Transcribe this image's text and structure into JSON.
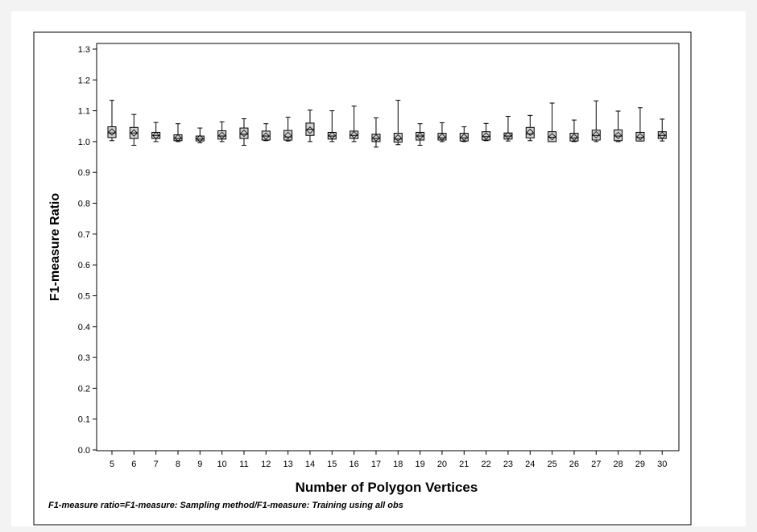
{
  "chart_data": {
    "type": "box",
    "xlabel": "Number of Polygon Vertices",
    "ylabel": "F1-measure Ratio",
    "ylim": [
      0.0,
      1.3
    ],
    "yticks": [
      "0.0",
      "0.1",
      "0.2",
      "0.3",
      "0.4",
      "0.5",
      "0.6",
      "0.7",
      "0.8",
      "0.9",
      "1.0",
      "1.1",
      "1.2",
      "1.3"
    ],
    "categories": [
      "5",
      "6",
      "7",
      "8",
      "9",
      "10",
      "11",
      "12",
      "13",
      "14",
      "15",
      "16",
      "17",
      "18",
      "19",
      "20",
      "21",
      "22",
      "23",
      "24",
      "25",
      "26",
      "27",
      "28",
      "29",
      "30"
    ],
    "boxes": [
      {
        "min": 1.003,
        "q1": 1.013,
        "median": 1.028,
        "q3": 1.048,
        "max": 1.134,
        "mean": 1.031
      },
      {
        "min": 0.988,
        "q1": 1.01,
        "median": 1.028,
        "q3": 1.046,
        "max": 1.088,
        "mean": 1.028
      },
      {
        "min": 1.0,
        "q1": 1.01,
        "median": 1.02,
        "q3": 1.03,
        "max": 1.062,
        "mean": 1.02
      },
      {
        "min": 1.0,
        "q1": 1.003,
        "median": 1.01,
        "q3": 1.022,
        "max": 1.058,
        "mean": 1.012
      },
      {
        "min": 0.996,
        "q1": 1.002,
        "median": 1.008,
        "q3": 1.018,
        "max": 1.044,
        "mean": 1.01
      },
      {
        "min": 1.0,
        "q1": 1.008,
        "median": 1.018,
        "q3": 1.035,
        "max": 1.064,
        "mean": 1.02
      },
      {
        "min": 0.988,
        "q1": 1.01,
        "median": 1.024,
        "q3": 1.044,
        "max": 1.074,
        "mean": 1.027
      },
      {
        "min": 1.003,
        "q1": 1.005,
        "median": 1.018,
        "q3": 1.034,
        "max": 1.058,
        "mean": 1.018
      },
      {
        "min": 1.002,
        "q1": 1.005,
        "median": 1.015,
        "q3": 1.036,
        "max": 1.079,
        "mean": 1.02
      },
      {
        "min": 1.0,
        "q1": 1.02,
        "median": 1.04,
        "q3": 1.06,
        "max": 1.102,
        "mean": 1.037
      },
      {
        "min": 1.0,
        "q1": 1.008,
        "median": 1.018,
        "q3": 1.03,
        "max": 1.1,
        "mean": 1.02
      },
      {
        "min": 1.0,
        "q1": 1.01,
        "median": 1.02,
        "q3": 1.034,
        "max": 1.115,
        "mean": 1.022
      },
      {
        "min": 0.982,
        "q1": 1.0,
        "median": 1.01,
        "q3": 1.024,
        "max": 1.077,
        "mean": 1.012
      },
      {
        "min": 0.99,
        "q1": 0.998,
        "median": 1.008,
        "q3": 1.027,
        "max": 1.134,
        "mean": 1.012
      },
      {
        "min": 0.988,
        "q1": 1.005,
        "median": 1.018,
        "q3": 1.03,
        "max": 1.058,
        "mean": 1.018
      },
      {
        "min": 1.0,
        "q1": 1.005,
        "median": 1.012,
        "q3": 1.027,
        "max": 1.061,
        "mean": 1.015
      },
      {
        "min": 1.0,
        "q1": 1.002,
        "median": 1.012,
        "q3": 1.027,
        "max": 1.048,
        "mean": 1.014
      },
      {
        "min": 1.003,
        "q1": 1.005,
        "median": 1.016,
        "q3": 1.032,
        "max": 1.059,
        "mean": 1.018
      },
      {
        "min": 1.002,
        "q1": 1.008,
        "median": 1.018,
        "q3": 1.028,
        "max": 1.082,
        "mean": 1.02
      },
      {
        "min": 1.003,
        "q1": 1.012,
        "median": 1.025,
        "q3": 1.046,
        "max": 1.085,
        "mean": 1.03
      },
      {
        "min": 1.0,
        "q1": 1.0,
        "median": 1.014,
        "q3": 1.032,
        "max": 1.125,
        "mean": 1.016
      },
      {
        "min": 1.0,
        "q1": 1.002,
        "median": 1.012,
        "q3": 1.027,
        "max": 1.07,
        "mean": 1.014
      },
      {
        "min": 1.0,
        "q1": 1.005,
        "median": 1.02,
        "q3": 1.037,
        "max": 1.132,
        "mean": 1.022
      },
      {
        "min": 1.0,
        "q1": 1.003,
        "median": 1.018,
        "q3": 1.038,
        "max": 1.099,
        "mean": 1.02
      },
      {
        "min": 1.002,
        "q1": 1.002,
        "median": 1.013,
        "q3": 1.03,
        "max": 1.11,
        "mean": 1.016
      },
      {
        "min": 1.002,
        "q1": 1.01,
        "median": 1.02,
        "q3": 1.032,
        "max": 1.073,
        "mean": 1.02
      }
    ],
    "grid": false,
    "legend": "none"
  },
  "footnote": "F1-measure ratio=F1-measure: Sampling method/F1-measure: Training using all obs"
}
